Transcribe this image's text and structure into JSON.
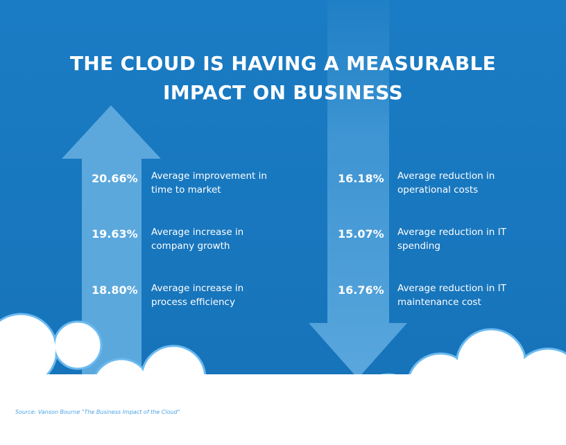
{
  "title": {
    "line1": "THE CLOUD IS HAVING A MEASURABLE",
    "line2": "IMPACT ON BUSINESS"
  },
  "increases": [
    {
      "value": "20.66%",
      "label_line1": "Average improvement in",
      "label_line2": "time to market"
    },
    {
      "value": "19.63%",
      "label_line1": "Average increase in",
      "label_line2": "company growth"
    },
    {
      "value": "18.80%",
      "label_line1": "Average increase in",
      "label_line2": "process efficiency"
    }
  ],
  "reductions": [
    {
      "value": "16.18%",
      "label_line1": "Average reduction in",
      "label_line2": "operational costs"
    },
    {
      "value": "15.07%",
      "label_line1": "Average reduction in IT",
      "label_line2": "spending"
    },
    {
      "value": "16.76%",
      "label_line1": "Average reduction in IT",
      "label_line2": "maintenance cost"
    }
  ],
  "source": "Source: Vanson Bourne \"The Business Impact of the Cloud\"",
  "colors": {
    "background": "#1877c0",
    "arrow": "#5aa7dd",
    "cloud": "#ffffff",
    "cloud_outline": "#5fb3ec"
  }
}
